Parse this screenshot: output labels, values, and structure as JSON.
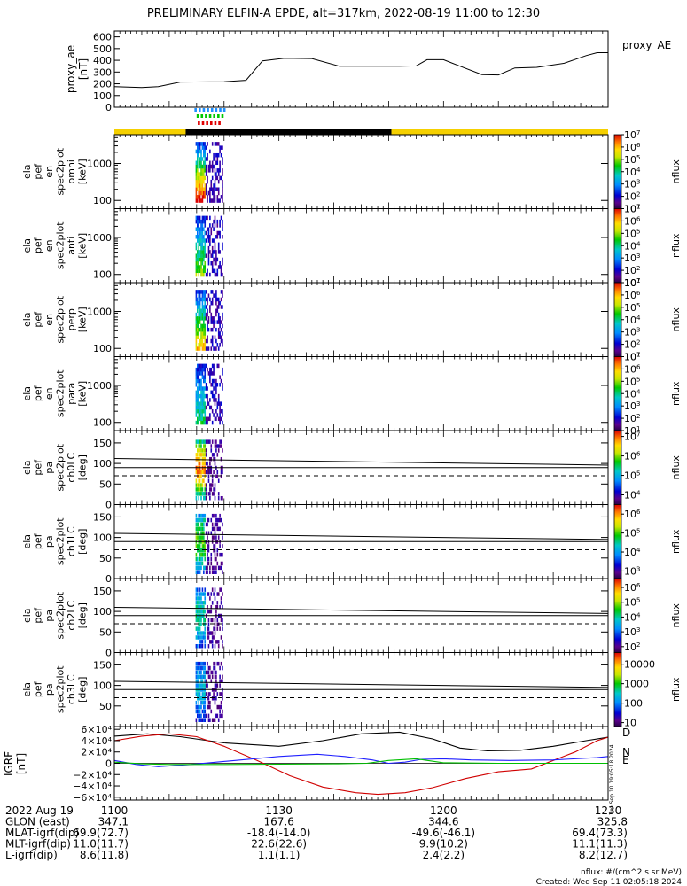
{
  "title": "PRELIMINARY ELFIN-A EPDE, alt=317km, 2022-08-19 11:00 to 12:30",
  "colors": {
    "sunlit_bar": "#f5d000",
    "eclipse_bar": "#000000",
    "phase_blue": "#1e90ff",
    "phase_green": "#00c800",
    "phase_red": "#e00000",
    "igrf_x": "#d00000",
    "igrf_y": "#2020ff",
    "igrf_z": "#00c000",
    "igrf_total": "#000000"
  },
  "chart_data": {
    "type": "stacked-timeseries",
    "time_range": [
      "2022-08-19 11:00",
      "2022-08-19 12:30"
    ],
    "x_ticks": [
      "1100",
      "1130",
      "1200",
      "1230"
    ],
    "x_tick_minutes": [
      0,
      30,
      60,
      90
    ],
    "science_interval_minutes": [
      14.8,
      19.8
    ],
    "proxy_ae": {
      "ylabel": [
        "proxy_ae",
        "[nT]"
      ],
      "legend": "proxy_AE",
      "ylim": [
        0,
        650
      ],
      "y_ticks": [
        "600",
        "500",
        "400",
        "300",
        "200",
        "100",
        "0"
      ],
      "y_tick_values": [
        600,
        500,
        400,
        300,
        200,
        100,
        0
      ],
      "t": [
        0,
        5,
        8,
        12,
        20,
        24,
        27,
        31,
        36,
        41,
        46,
        52,
        55,
        57,
        60,
        63,
        67,
        70,
        73,
        77,
        82,
        86,
        88,
        90
      ],
      "v": [
        175,
        168,
        175,
        215,
        218,
        230,
        395,
        418,
        415,
        350,
        350,
        350,
        352,
        405,
        405,
        350,
        278,
        275,
        335,
        340,
        375,
        440,
        465,
        465
      ]
    },
    "sunlit": [
      {
        "start": 0,
        "end": 13,
        "state": "sunlit"
      },
      {
        "start": 13,
        "end": 50.5,
        "state": "eclipse"
      },
      {
        "start": 50.5,
        "end": 90,
        "state": "sunlit"
      }
    ],
    "spectrograms": [
      {
        "ylabel": [
          "ela",
          "pef",
          "en",
          "spec2plot",
          "omni",
          "[keV]"
        ],
        "y_ticks": [
          "1000",
          "100"
        ],
        "y_tick_values": [
          1000,
          100
        ],
        "ylim": [
          60,
          6000
        ],
        "zlabel": "nflux",
        "z_ticks": [
          "10^7",
          "10^6",
          "10^5",
          "10^4",
          "10^3",
          "10^2",
          "10^1"
        ],
        "z_tick_values": [
          7,
          6,
          5,
          4,
          3,
          2,
          1
        ],
        "zlim": [
          1,
          7
        ],
        "kind": "energy",
        "intensity": 1.0
      },
      {
        "ylabel": [
          "ela",
          "pef",
          "en",
          "spec2plot",
          "anti",
          "[keV]"
        ],
        "y_ticks": [
          "1000",
          "100"
        ],
        "y_tick_values": [
          1000,
          100
        ],
        "ylim": [
          60,
          6000
        ],
        "zlabel": "nflux",
        "z_ticks": [
          "10^7",
          "10^6",
          "10^5",
          "10^4",
          "10^3",
          "10^2",
          "10^1"
        ],
        "z_tick_values": [
          7,
          6,
          5,
          4,
          3,
          2,
          1
        ],
        "zlim": [
          1,
          7
        ],
        "kind": "energy",
        "intensity": 0.55
      },
      {
        "ylabel": [
          "ela",
          "pef",
          "en",
          "spec2plot",
          "perp",
          "[keV]"
        ],
        "y_ticks": [
          "1000",
          "100"
        ],
        "y_tick_values": [
          1000,
          100
        ],
        "ylim": [
          60,
          6000
        ],
        "zlabel": "nflux",
        "z_ticks": [
          "10^7",
          "10^6",
          "10^5",
          "10^4",
          "10^3",
          "10^2",
          "10^1"
        ],
        "z_tick_values": [
          7,
          6,
          5,
          4,
          3,
          2,
          1
        ],
        "zlim": [
          1,
          7
        ],
        "kind": "energy",
        "intensity": 0.75
      },
      {
        "ylabel": [
          "ela",
          "pef",
          "en",
          "spec2plot",
          "para",
          "[keV]"
        ],
        "y_ticks": [
          "1000",
          "100"
        ],
        "y_tick_values": [
          1000,
          100
        ],
        "ylim": [
          60,
          6000
        ],
        "zlabel": "nflux",
        "z_ticks": [
          "10^7",
          "10^6",
          "10^5",
          "10^4",
          "10^3",
          "10^2",
          "10^1"
        ],
        "z_tick_values": [
          7,
          6,
          5,
          4,
          3,
          2,
          1
        ],
        "zlim": [
          1,
          7
        ],
        "kind": "energy",
        "intensity": 0.4
      },
      {
        "ylabel": [
          "ela",
          "pef",
          "pa",
          "spec2plot",
          "ch0LC",
          "[deg]"
        ],
        "y_ticks": [
          "150",
          "100",
          "50",
          "0"
        ],
        "y_tick_values": [
          150,
          100,
          50,
          0
        ],
        "ylim": [
          0,
          180
        ],
        "zlabel": "nflux",
        "z_ticks": [
          "10^7",
          "10^6",
          "10^5",
          "10^4"
        ],
        "z_tick_values": [
          7,
          6,
          5,
          4
        ],
        "zlim": [
          3.5,
          7.3
        ],
        "kind": "pa",
        "intensity": 0.9,
        "lc_solid": [
          [
            0,
            112
          ],
          [
            90,
            96
          ]
        ],
        "lc_solid2": [
          [
            0,
            90
          ],
          [
            90,
            90
          ]
        ],
        "lc_dashed": [
          [
            0,
            70
          ],
          [
            90,
            70
          ]
        ]
      },
      {
        "ylabel": [
          "ela",
          "pef",
          "pa",
          "spec2plot",
          "ch1LC",
          "[deg]"
        ],
        "y_ticks": [
          "150",
          "100",
          "50",
          "0"
        ],
        "y_tick_values": [
          150,
          100,
          50,
          0
        ],
        "ylim": [
          0,
          180
        ],
        "zlabel": "nflux",
        "z_ticks": [
          "10^6",
          "10^5",
          "10^4",
          "10^3"
        ],
        "z_tick_values": [
          6,
          5,
          4,
          3
        ],
        "zlim": [
          2.6,
          6.5
        ],
        "kind": "pa",
        "intensity": 0.6,
        "lc_solid": [
          [
            0,
            110
          ],
          [
            90,
            95
          ]
        ],
        "lc_solid2": [
          [
            0,
            90
          ],
          [
            90,
            90
          ]
        ],
        "lc_dashed": [
          [
            0,
            70
          ],
          [
            90,
            70
          ]
        ]
      },
      {
        "ylabel": [
          "ela",
          "pef",
          "pa",
          "spec2plot",
          "ch2LC",
          "[deg]"
        ],
        "y_ticks": [
          "150",
          "100",
          "50",
          "0"
        ],
        "y_tick_values": [
          150,
          100,
          50,
          0
        ],
        "ylim": [
          0,
          180
        ],
        "zlabel": "nflux",
        "z_ticks": [
          "10^6",
          "10^5",
          "10^4",
          "10^3",
          "10^2"
        ],
        "z_tick_values": [
          6,
          5,
          4,
          3,
          2
        ],
        "zlim": [
          1.6,
          6.6
        ],
        "kind": "pa",
        "intensity": 0.45,
        "lc_solid": [
          [
            0,
            110
          ],
          [
            90,
            95
          ]
        ],
        "lc_solid2": [
          [
            0,
            90
          ],
          [
            90,
            90
          ]
        ],
        "lc_dashed": [
          [
            0,
            70
          ],
          [
            90,
            70
          ]
        ]
      },
      {
        "ylabel": [
          "ela",
          "pef",
          "pa",
          "spec2plot",
          "ch3LC",
          "[deg]"
        ],
        "y_ticks": [
          "150",
          "100",
          "50"
        ],
        "y_tick_values": [
          150,
          100,
          50
        ],
        "ylim": [
          0,
          180
        ],
        "zlabel": "nflux",
        "z_ticks": [
          "10000",
          "1000",
          "100",
          "10"
        ],
        "z_tick_values": [
          4,
          3,
          2,
          1
        ],
        "zlim": [
          0.8,
          4.6
        ],
        "kind": "pa",
        "intensity": 0.35,
        "lc_solid": [
          [
            0,
            110
          ],
          [
            90,
            95
          ]
        ],
        "lc_solid2": [
          [
            0,
            90
          ],
          [
            90,
            90
          ]
        ],
        "lc_dashed": [
          [
            0,
            70
          ],
          [
            90,
            70
          ]
        ]
      }
    ],
    "igrf": {
      "ylabel": [
        "IGRF",
        "[nT]"
      ],
      "ylim": [
        -65000,
        65000
      ],
      "y_ticks": [
        "6×10⁴",
        "4×10⁴",
        "2×10⁴",
        "0",
        "−2×10⁴",
        "−4×10⁴",
        "−6×10⁴"
      ],
      "y_tick_values": [
        60000,
        40000,
        20000,
        0,
        -20000,
        -40000,
        -60000
      ],
      "labels": [
        "D",
        "N",
        "E"
      ],
      "series": [
        {
          "key": "total",
          "t": [
            0,
            6,
            12,
            20,
            30,
            38,
            45,
            52,
            58,
            63,
            68,
            74,
            80,
            86,
            90
          ],
          "v": [
            48000,
            52000,
            47000,
            36000,
            30000,
            40000,
            52000,
            55000,
            43000,
            27000,
            22000,
            23000,
            30000,
            40000,
            46000
          ]
        },
        {
          "key": "x",
          "t": [
            0,
            5,
            10,
            15,
            20,
            26,
            32,
            38,
            44,
            48,
            53,
            58,
            64,
            70,
            76,
            80,
            84,
            88,
            90
          ],
          "v": [
            40000,
            48000,
            52000,
            47000,
            30000,
            5000,
            -22000,
            -42000,
            -52000,
            -55000,
            -52000,
            -43000,
            -27000,
            -15000,
            -10000,
            5000,
            20000,
            40000,
            46000
          ]
        },
        {
          "key": "y",
          "t": [
            0,
            4,
            8,
            14,
            22,
            30,
            37,
            42,
            47,
            50,
            53,
            56,
            60,
            65,
            72,
            80,
            88,
            90
          ],
          "v": [
            5000,
            -2000,
            -6000,
            -2000,
            5000,
            12000,
            16000,
            12000,
            6000,
            0,
            2000,
            7000,
            8000,
            6000,
            5000,
            6000,
            10000,
            12000
          ]
        },
        {
          "key": "z",
          "t": [
            0,
            5,
            10,
            20,
            30,
            40,
            46,
            50,
            55,
            60,
            70,
            80,
            90
          ],
          "v": [
            2000,
            -1000,
            -2000,
            -2000,
            -1500,
            -1000,
            0,
            5000,
            8000,
            1000,
            0,
            0,
            0
          ]
        }
      ]
    }
  },
  "footer": {
    "rows": [
      {
        "label": "2022 Aug 19",
        "values": [
          "1100",
          "1130",
          "1200",
          "1230"
        ]
      },
      {
        "label": "GLON (east)",
        "values": [
          "347.1",
          "167.6",
          "344.6",
          "325.8"
        ]
      },
      {
        "label": "MLAT-igrf(dip)",
        "values": [
          "69.9(72.7)",
          "-18.4(-14.0)",
          "-49.6(-46.1)",
          "69.4(73.3)"
        ]
      },
      {
        "label": "MLT-igrf(dip)",
        "values": [
          "11.0(11.7)",
          "22.6(22.6)",
          "9.9(10.2)",
          "11.1(11.3)"
        ]
      },
      {
        "label": "L-igrf(dip)",
        "values": [
          "8.6(11.8)",
          "1.1(1.1)",
          "2.4(2.2)",
          "8.2(12.7)"
        ]
      }
    ],
    "units_note": "nflux: #/(cm^2 s sr MeV)",
    "created": "Created: Wed Sep 11 02:05:18 2024",
    "side_stamp": "Tue Sep 10 19:05:18 2024"
  }
}
